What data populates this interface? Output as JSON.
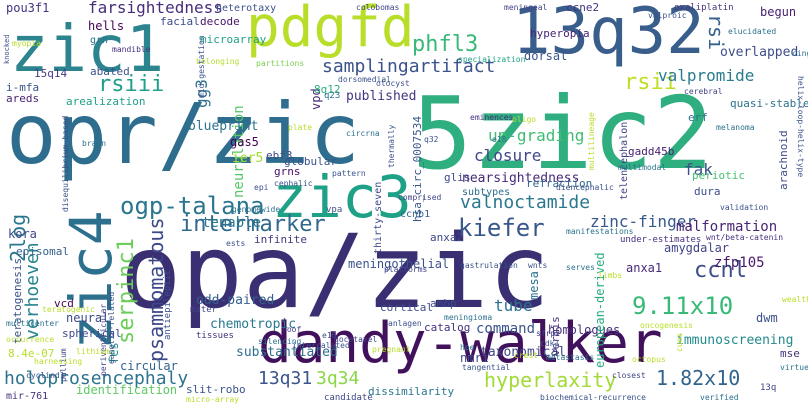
{
  "cloud": {
    "words": [
      {
        "text": "opa/zic",
        "color": "#3b2f74"
      },
      {
        "text": "opr/zic",
        "color": "#2e6d8e"
      },
      {
        "text": "5zic2",
        "color": "#2fae7f"
      },
      {
        "text": "dandy-walker",
        "color": "#41115c"
      },
      {
        "text": "13q32",
        "color": "#3a5e8c"
      },
      {
        "text": "pdgfd",
        "color": "#b8de29"
      },
      {
        "text": "zic1",
        "color": "#2c848e"
      },
      {
        "text": "zic3",
        "color": "#1fa187"
      },
      {
        "text": "zic4",
        "color": "#2d708e"
      },
      {
        "text": "ogp-talana",
        "color": "#2a768e"
      },
      {
        "text": "holoprosencephaly",
        "color": "#2c738e"
      },
      {
        "text": "samplingartifact",
        "color": "#3a538b"
      },
      {
        "text": "psammomatous",
        "color": "#3e4989"
      },
      {
        "text": "intermarker",
        "color": "#31688e"
      },
      {
        "text": "valnoctamide",
        "color": "#2a788e"
      },
      {
        "text": "zinc-finger",
        "color": "#37598c"
      },
      {
        "text": "9.11x10",
        "color": "#38b977"
      },
      {
        "text": "1.82x10",
        "color": "#32658e"
      },
      {
        "text": "13q31",
        "color": "#3a548c"
      },
      {
        "text": "3q34",
        "color": "#8bd646"
      },
      {
        "text": "hyperlaxity",
        "color": "#a2da37"
      },
      {
        "text": "verhoeven",
        "color": "#25848e"
      },
      {
        "text": "serpinc1",
        "color": "#6ccd5a"
      },
      {
        "text": "2log",
        "color": "#2a768e"
      },
      {
        "text": "kiefer",
        "color": "#38588c"
      },
      {
        "text": "ccnl",
        "color": "#3d4d8a"
      },
      {
        "text": "phfl3",
        "color": "#38b977"
      },
      {
        "text": "farsightedness",
        "color": "#472c7a"
      },
      {
        "text": "rsiii",
        "color": "#1f9e89"
      },
      {
        "text": "rsii",
        "color": "#bddf26"
      },
      {
        "text": "rsi",
        "color": "#34618d"
      },
      {
        "text": "pou3f1",
        "color": "#46337f"
      },
      {
        "text": "hells",
        "color": "#440154"
      },
      {
        "text": "15q14",
        "color": "#443b84"
      },
      {
        "text": "i-mfa",
        "color": "#3b528b"
      },
      {
        "text": "areds",
        "color": "#482576"
      },
      {
        "text": "gg3",
        "color": "#2d718e"
      },
      {
        "text": "zfp105",
        "color": "#48186a"
      },
      {
        "text": "fak",
        "color": "#3b528b"
      },
      {
        "text": "malformation",
        "color": "#482475"
      },
      {
        "text": "valpromide",
        "color": "#287c8e"
      },
      {
        "text": "overlapped",
        "color": "#3d4e8a"
      },
      {
        "text": "begun",
        "color": "#481f70"
      },
      {
        "text": "neurulation",
        "color": "#56c667"
      },
      {
        "text": "tenable",
        "color": "#2a778e"
      },
      {
        "text": "up-grading",
        "color": "#3fbc73"
      },
      {
        "text": "closure",
        "color": "#404688"
      },
      {
        "text": "nearsightedness",
        "color": "#472a7a"
      },
      {
        "text": "published",
        "color": "#453581"
      },
      {
        "text": "meningothelial",
        "color": "#3b528b"
      },
      {
        "text": "chemotropic",
        "color": "#2a788e"
      },
      {
        "text": "odd-paired",
        "color": "#355f8d"
      },
      {
        "text": "substantiated",
        "color": "#2e6e8e"
      },
      {
        "text": "taxonomical",
        "color": "#3e4a89"
      },
      {
        "text": "immunoscreening",
        "color": "#238a8d"
      },
      {
        "text": "amygdalar",
        "color": "#414487"
      },
      {
        "text": "anxa1",
        "color": "#482878"
      },
      {
        "text": "anxa2",
        "color": "#3f4788"
      },
      {
        "text": "tube",
        "color": "#2c728e"
      },
      {
        "text": "command",
        "color": "#3a548c"
      },
      {
        "text": "homologues",
        "color": "#46327e"
      },
      {
        "text": "mesa",
        "color": "#2d718e"
      },
      {
        "text": "vermis",
        "color": "#46337f"
      },
      {
        "text": "nmri",
        "color": "#3e4a89"
      },
      {
        "text": "circular",
        "color": "#33638d"
      },
      {
        "text": "fes",
        "color": "#21918c"
      },
      {
        "text": "8.4e-07",
        "color": "#b5de2b"
      },
      {
        "text": "neural",
        "color": "#3e4989"
      },
      {
        "text": "vcd",
        "color": "#440154"
      },
      {
        "text": "spherical",
        "color": "#3e4989"
      },
      {
        "text": "teratogenesis",
        "color": "#3b528b"
      },
      {
        "text": "episomal",
        "color": "#34618d"
      },
      {
        "text": "kora",
        "color": "#3f4788"
      },
      {
        "text": "ier5",
        "color": "#a8db34"
      },
      {
        "text": "gas5",
        "color": "#440154"
      },
      {
        "text": "ebf3",
        "color": "#3e4c8a"
      },
      {
        "text": "blueprint",
        "color": "#2c728e"
      },
      {
        "text": "vpd",
        "color": "#482677"
      },
      {
        "text": "8q12",
        "color": "#2db27d"
      },
      {
        "text": "globular",
        "color": "#3b528b"
      },
      {
        "text": "grns",
        "color": "#471063"
      },
      {
        "text": "infinite",
        "color": "#45377f"
      },
      {
        "text": "cortical",
        "color": "#3d4e8a"
      },
      {
        "text": "catalog",
        "color": "#46307e"
      },
      {
        "text": "ambp",
        "color": "#3e4a89"
      },
      {
        "text": "european-derived",
        "color": "#27ad81"
      },
      {
        "text": "dwm",
        "color": "#3b528b"
      },
      {
        "text": "mse",
        "color": "#46327e"
      },
      {
        "text": "identification",
        "color": "#5ec962"
      },
      {
        "text": "dissimilarity",
        "color": "#2b758e"
      },
      {
        "text": "slit-robo",
        "color": "#3a538b"
      },
      {
        "text": "candidate",
        "color": "#3f4788"
      },
      {
        "text": "mir-761",
        "color": "#46327e"
      },
      {
        "text": "gadd45b",
        "color": "#482374"
      },
      {
        "text": "refraction",
        "color": "#31688e"
      },
      {
        "text": "erf",
        "color": "#2c738e"
      },
      {
        "text": "dura",
        "color": "#3d4d8a"
      },
      {
        "text": "periotic",
        "color": "#48c16e"
      },
      {
        "text": "glis",
        "color": "#3f4788"
      },
      {
        "text": "ccnb1",
        "color": "#33628d"
      },
      {
        "text": "subtypes",
        "color": "#2e6e8e"
      },
      {
        "text": "hsa_circ_0007534",
        "color": "#39568c"
      },
      {
        "text": "hyperopia",
        "color": "#482576"
      },
      {
        "text": "dorsal",
        "color": "#3a548c"
      },
      {
        "text": "ccne2",
        "color": "#46307e"
      },
      {
        "text": "abated",
        "color": "#3b528b"
      },
      {
        "text": "facial",
        "color": "#3e4c8a"
      },
      {
        "text": "decode",
        "color": "#481467"
      },
      {
        "text": "microarray",
        "color": "#20a386"
      },
      {
        "text": "heterotaxy",
        "color": "#3b528b"
      },
      {
        "text": "grn",
        "color": "#2c728e"
      },
      {
        "text": "arealization",
        "color": "#1fa088"
      },
      {
        "text": "arachnoid",
        "color": "#3e4989"
      },
      {
        "text": "quasi-stable",
        "color": "#2c728e"
      },
      {
        "text": "thirty-seven",
        "color": "#3e4989"
      },
      {
        "text": "valproic",
        "color": "#3b528b"
      },
      {
        "text": "oxaliplatin",
        "color": "#46327e"
      },
      {
        "text": "colobomas",
        "color": "#414487"
      },
      {
        "text": "cingulate",
        "color": "#2c728e"
      },
      {
        "text": "elucidated",
        "color": "#2c728e"
      },
      {
        "text": "mandible",
        "color": "#46307e"
      },
      {
        "text": "myopia",
        "color": "#b8de29"
      },
      {
        "text": "knocked",
        "color": "#3b528b"
      },
      {
        "text": "belonging",
        "color": "#b5de2b"
      },
      {
        "text": "partitions",
        "color": "#7ad151"
      },
      {
        "text": "specialization",
        "color": "#20a386"
      },
      {
        "text": "q23",
        "color": "#2c728e"
      },
      {
        "text": "dorsomedial",
        "color": "#3b528b"
      },
      {
        "text": "cerebral",
        "color": "#414487"
      },
      {
        "text": "melanoma",
        "color": "#2c728e"
      },
      {
        "text": "helix-loop-helix-type",
        "color": "#3b528b"
      },
      {
        "text": "wnt/beta-catenin",
        "color": "#46307e"
      },
      {
        "text": "validation",
        "color": "#3b528b"
      },
      {
        "text": "disequilibrium-based",
        "color": "#3b528b"
      },
      {
        "text": "pallium",
        "color": "#3e4989"
      },
      {
        "text": "brain",
        "color": "#2c728e"
      },
      {
        "text": "under-estimates",
        "color": "#46307e"
      },
      {
        "text": "manifestations",
        "color": "#2c728e"
      },
      {
        "text": "gastrulation",
        "color": "#3b528b"
      },
      {
        "text": "platforms",
        "color": "#414487"
      },
      {
        "text": "wnts",
        "color": "#3b528b"
      },
      {
        "text": "serves",
        "color": "#2c728e"
      },
      {
        "text": "diencephalic",
        "color": "#3b528b"
      },
      {
        "text": "telencephalon",
        "color": "#414487"
      },
      {
        "text": "multimodal",
        "color": "#2c728e"
      },
      {
        "text": "eminences",
        "color": "#46307e"
      },
      {
        "text": "thermally",
        "color": "#3b528b"
      },
      {
        "text": "circrna",
        "color": "#2c728e"
      },
      {
        "text": "pattern",
        "color": "#3b528b"
      },
      {
        "text": "comprised",
        "color": "#414487"
      },
      {
        "text": "vpa",
        "color": "#3b528b"
      },
      {
        "text": "genomewide",
        "color": "#2c728e"
      },
      {
        "text": "cephalic",
        "color": "#3b528b"
      },
      {
        "text": "tissues",
        "color": "#46307e"
      },
      {
        "text": "silencing",
        "color": "#2c728e"
      },
      {
        "text": "intercalated",
        "color": "#3b528b"
      },
      {
        "text": "docetaxel",
        "color": "#414487"
      },
      {
        "text": "anlagen",
        "color": "#3b528b"
      },
      {
        "text": "meningioma",
        "color": "#2c728e"
      },
      {
        "text": "e16",
        "color": "#3b528b"
      },
      {
        "text": "roof",
        "color": "#414487"
      },
      {
        "text": "hpe",
        "color": "#2c728e"
      },
      {
        "text": "cdk1",
        "color": "#3b528b"
      },
      {
        "text": "sfrp2",
        "color": "#414487"
      },
      {
        "text": "metastasis",
        "color": "#2c728e"
      },
      {
        "text": "tangential",
        "color": "#3b528b"
      },
      {
        "text": "closest",
        "color": "#414487"
      },
      {
        "text": "verified",
        "color": "#2c728e"
      },
      {
        "text": "biochemical-recurrence",
        "color": "#3b528b"
      },
      {
        "text": "13q",
        "color": "#414487"
      },
      {
        "text": "virtue",
        "color": "#2c728e"
      },
      {
        "text": "wealth",
        "color": "#b8de29"
      },
      {
        "text": "cues",
        "color": "#b8de29"
      },
      {
        "text": "oncogenesis",
        "color": "#b8de29"
      },
      {
        "text": "antiepileptic",
        "color": "#3b528b"
      },
      {
        "text": "mater",
        "color": "#414487"
      },
      {
        "text": "harnessing",
        "color": "#b8de29"
      },
      {
        "text": "cyclind1",
        "color": "#3b528b"
      },
      {
        "text": "periventricular",
        "color": "#414487"
      },
      {
        "text": "teratogenic",
        "color": "#b8de29"
      },
      {
        "text": "multicenter",
        "color": "#2c728e"
      },
      {
        "text": "micro-array",
        "color": "#b8de29"
      },
      {
        "text": "ganglia-related",
        "color": "#3b528b"
      },
      {
        "text": "occurrence",
        "color": "#b8de29"
      },
      {
        "text": "epi",
        "color": "#3b528b"
      },
      {
        "text": "pregnant",
        "color": "#b8de29"
      },
      {
        "text": "mid-gestation",
        "color": "#3b528b"
      },
      {
        "text": "meningeal",
        "color": "#414487"
      },
      {
        "text": "e18",
        "color": "#2c728e"
      },
      {
        "text": "q32",
        "color": "#3b528b"
      },
      {
        "text": "oligo",
        "color": "#b8de29"
      },
      {
        "text": "otocyst",
        "color": "#3b528b"
      },
      {
        "text": "plate",
        "color": "#b8de29"
      },
      {
        "text": "multilineage",
        "color": "#b8de29"
      },
      {
        "text": "ests",
        "color": "#3b528b"
      },
      {
        "text": "crest",
        "color": "#b8de29"
      },
      {
        "text": "limbs",
        "color": "#b8de29"
      },
      {
        "text": "octopus",
        "color": "#b8de29"
      },
      {
        "text": "lithium",
        "color": "#b8de29"
      }
    ]
  }
}
